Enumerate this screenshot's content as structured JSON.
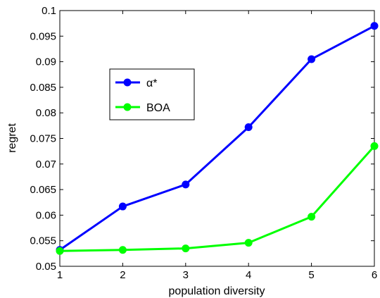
{
  "chart_data": {
    "type": "line",
    "title": "",
    "xlabel": "population diversity",
    "ylabel": "regret",
    "x": [
      1,
      2,
      3,
      4,
      5,
      6
    ],
    "xlim": [
      1,
      6
    ],
    "ylim": [
      0.05,
      0.1
    ],
    "xticks": [
      "1",
      "2",
      "3",
      "4",
      "5",
      "6"
    ],
    "yticks": [
      "0.05",
      "0.055",
      "0.06",
      "0.065",
      "0.07",
      "0.075",
      "0.08",
      "0.085",
      "0.09",
      "0.095",
      "0.1"
    ],
    "grid": false,
    "legend_position": "upper-left",
    "series": [
      {
        "name": "α*",
        "color": "#0000ff",
        "marker": "circle",
        "values": [
          0.0532,
          0.0617,
          0.066,
          0.0772,
          0.0905,
          0.097
        ]
      },
      {
        "name": "BOA",
        "color": "#00ff00",
        "marker": "circle",
        "values": [
          0.053,
          0.0532,
          0.0535,
          0.0546,
          0.0597,
          0.0735
        ]
      }
    ]
  }
}
